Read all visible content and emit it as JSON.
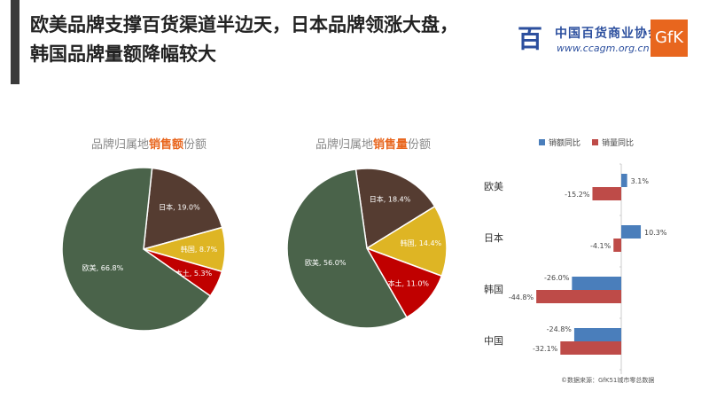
{
  "title": {
    "line1": "欧美品牌支撑百货渠道半边天，日本品牌领涨大盘，",
    "line2": "韩国品牌量额降幅较大"
  },
  "logo": {
    "mark": "百",
    "name_cn": "中国百货商业协会",
    "url": "www.ccagm.org.cn",
    "gfk": "GfK"
  },
  "source": "©数据来源：GfK51城市零总数据",
  "chart_data": [
    {
      "type": "pie",
      "title_prefix": "品牌归属地",
      "title_highlight": "销售额",
      "title_suffix": "份额",
      "slices": [
        {
          "label": "日本",
          "value": 19.0,
          "color": "#553c31"
        },
        {
          "label": "韩国",
          "value": 8.7,
          "color": "#deb524"
        },
        {
          "label": "本土",
          "value": 5.3,
          "color": "#c00000"
        },
        {
          "label": "欧美",
          "value": 66.8,
          "color": "#4a634a"
        }
      ],
      "data_labels": [
        "日本, 19.0%",
        "韩国, 8.7%",
        "本土, 5.3%",
        "欧美, 66.8%"
      ]
    },
    {
      "type": "pie",
      "title_prefix": "品牌归属地",
      "title_highlight": "销售量",
      "title_suffix": "份额",
      "slices": [
        {
          "label": "日本",
          "value": 18.4,
          "color": "#553c31"
        },
        {
          "label": "韩国",
          "value": 14.4,
          "color": "#deb524"
        },
        {
          "label": "本土",
          "value": 11.0,
          "color": "#c00000"
        },
        {
          "label": "欧美",
          "value": 56.0,
          "color": "#4a634a"
        }
      ],
      "data_labels": [
        "日本, 18.4%",
        "韩国, 14.4%",
        "本土, 11.0%",
        "欧美, 56.0%"
      ]
    },
    {
      "type": "bar",
      "orientation": "horizontal",
      "categories": [
        "欧美",
        "日本",
        "韩国",
        "中国"
      ],
      "series": [
        {
          "name": "销额同比",
          "values": [
            3.1,
            10.3,
            -26.0,
            -24.8
          ],
          "color": "#4a7ebb"
        },
        {
          "name": "销量同比",
          "values": [
            -15.2,
            -4.1,
            -44.8,
            -32.1
          ],
          "color": "#be4b48"
        }
      ],
      "data_labels": [
        [
          "3.1%",
          "10.3%",
          "-26.0%",
          "-24.8%"
        ],
        [
          "-15.2%",
          "-4.1%",
          "-44.8%",
          "-32.1%"
        ]
      ],
      "legend": "top",
      "grid": false
    }
  ]
}
